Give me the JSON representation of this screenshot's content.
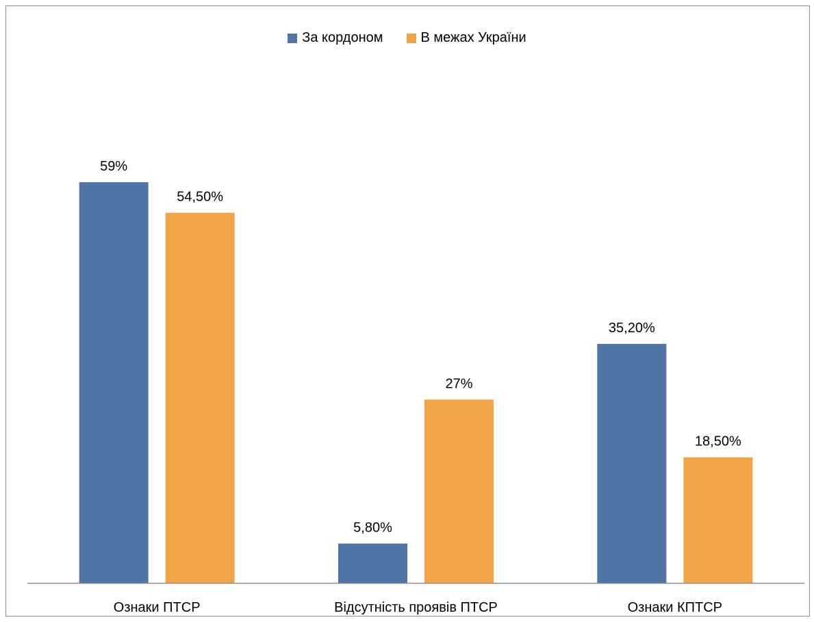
{
  "chart_data": {
    "type": "bar",
    "categories": [
      "Ознаки ПТСР",
      "Відсутність проявів ПТСР",
      "Ознаки КПТСР"
    ],
    "series": [
      {
        "name": "За кордоном",
        "color": "#4f76a6",
        "values": [
          59,
          5.8,
          35.2
        ],
        "labels": [
          "59%",
          "5,80%",
          "35,20%"
        ]
      },
      {
        "name": "В межах України",
        "color": "#f2a547",
        "values": [
          54.5,
          27,
          18.5
        ],
        "labels": [
          "54,50%",
          "27%",
          "18,50%"
        ]
      }
    ],
    "ylim": [
      0,
      71
    ],
    "grid": false,
    "legend_position": "top"
  }
}
